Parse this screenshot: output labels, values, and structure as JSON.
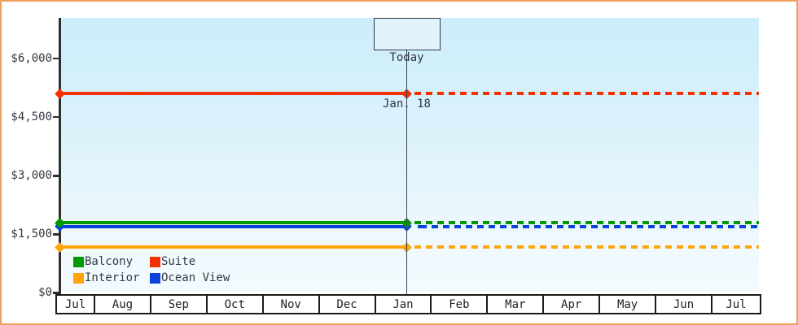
{
  "canvas": {
    "border_color": "#eca25c",
    "background": "#ffffff",
    "axis_color": "#2e2e2e",
    "text_color": "#35393f",
    "today_line_color": "#3a4654",
    "plot_gradient_top": "#cbeefa",
    "plot_gradient_bottom": "#f3fbff"
  },
  "chart_data": {
    "type": "line",
    "title": "",
    "xlabel": "",
    "ylabel": "",
    "x_axis": {
      "tick_labels": [
        "Jul",
        "Aug",
        "Sep",
        "Oct",
        "Nov",
        "Dec",
        "Jan",
        "Feb",
        "Mar",
        "Apr",
        "May",
        "Jun",
        "Jul"
      ]
    },
    "y_axis": {
      "tick_labels": [
        "$0",
        "$1,500",
        "$3,000",
        "$4,500",
        "$6,000"
      ],
      "tick_values": [
        0,
        1500,
        3000,
        4500,
        6000
      ],
      "range": [
        0,
        7000
      ],
      "grid": false
    },
    "today_annotation": {
      "line1": "Today",
      "line2": "Jan. 18",
      "month_index": 6,
      "month_fraction": 0.58
    },
    "series": [
      {
        "name": "Suite",
        "color": "#f53000",
        "value": 5100,
        "style": "solid-before-today-dotted-after"
      },
      {
        "name": "Interior",
        "color": "#ffa505",
        "value": 1175,
        "style": "solid-before-today-dotted-after"
      },
      {
        "name": "Ocean View",
        "color": "#0a44dd",
        "value": 1705,
        "style": "solid-before-today-dotted-after"
      },
      {
        "name": "Balcony",
        "color": "#009a00",
        "value": 1795,
        "style": "solid-before-today-dotted-after"
      }
    ],
    "legend": {
      "position": "bottom-left",
      "grid_order": [
        3,
        0,
        1,
        2
      ]
    }
  }
}
